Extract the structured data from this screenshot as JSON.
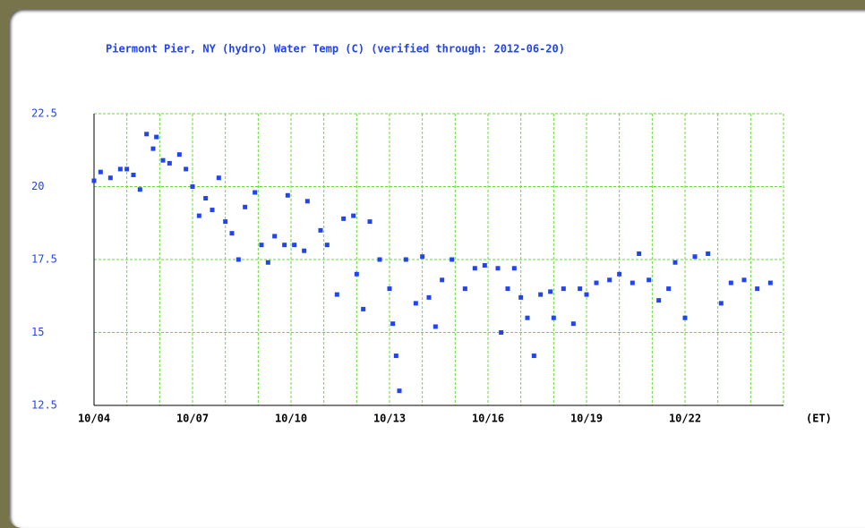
{
  "chart_data": {
    "type": "scatter",
    "title": "Piermont Pier, NY (hydro) Water Temp (C) (verified through: 2012-06-20)",
    "x_unit_label": "(ET)",
    "color": "#2244ee",
    "grid_color": "#66dd33",
    "grid": true,
    "xlim": [
      0,
      21
    ],
    "xticks": [
      {
        "value": 0,
        "label": "10/04"
      },
      {
        "value": 3,
        "label": "10/07"
      },
      {
        "value": 6,
        "label": "10/10"
      },
      {
        "value": 9,
        "label": "10/13"
      },
      {
        "value": 12,
        "label": "10/16"
      },
      {
        "value": 15,
        "label": "10/19"
      },
      {
        "value": 18,
        "label": "10/22"
      }
    ],
    "xminor": [
      1,
      2,
      4,
      5,
      7,
      8,
      10,
      11,
      13,
      14,
      16,
      17,
      19,
      20,
      21
    ],
    "ylim": [
      12.5,
      22.5
    ],
    "yticks": [
      12.5,
      15,
      17.5,
      20,
      22.5
    ],
    "x": [
      0,
      0.2,
      0.5,
      0.8,
      1.0,
      1.2,
      1.4,
      1.6,
      1.8,
      1.9,
      2.1,
      2.3,
      2.6,
      2.8,
      3.0,
      3.2,
      3.4,
      3.6,
      3.8,
      4.0,
      4.2,
      4.4,
      4.6,
      4.9,
      5.1,
      5.3,
      5.5,
      5.8,
      5.9,
      6.1,
      6.4,
      6.5,
      6.9,
      7.1,
      7.4,
      7.6,
      7.9,
      8.0,
      8.2,
      8.4,
      8.7,
      9.0,
      9.1,
      9.2,
      9.3,
      9.5,
      9.8,
      10.0,
      10.2,
      10.4,
      10.6,
      10.9,
      11.3,
      11.6,
      11.9,
      12.3,
      12.4,
      12.6,
      12.8,
      13.0,
      13.2,
      13.4,
      13.6,
      13.9,
      14.0,
      14.3,
      14.6,
      14.8,
      15.0,
      15.3,
      15.7,
      16.0,
      16.4,
      16.6,
      16.9,
      17.2,
      17.5,
      17.7,
      18.0,
      18.3,
      18.7,
      19.1,
      19.4,
      19.8,
      20.2,
      20.6
    ],
    "values": [
      20.2,
      20.5,
      20.3,
      20.6,
      20.6,
      20.4,
      19.9,
      21.8,
      21.3,
      21.7,
      20.9,
      20.8,
      21.1,
      20.6,
      20.0,
      19.0,
      19.6,
      19.2,
      20.3,
      18.8,
      18.4,
      17.5,
      19.3,
      19.8,
      18.0,
      17.4,
      18.3,
      18.0,
      19.7,
      18.0,
      17.8,
      19.5,
      18.5,
      18.0,
      16.3,
      18.9,
      19.0,
      17.0,
      15.8,
      18.8,
      17.5,
      16.5,
      15.3,
      14.2,
      13.0,
      17.5,
      16.0,
      17.6,
      16.2,
      15.2,
      16.8,
      17.5,
      16.5,
      17.2,
      17.3,
      17.2,
      15.0,
      16.5,
      17.2,
      16.2,
      15.5,
      14.2,
      16.3,
      16.4,
      15.5,
      16.5,
      15.3,
      16.5,
      16.3,
      16.7,
      16.8,
      17.0,
      16.7,
      17.7,
      16.8,
      16.1,
      16.5,
      17.4,
      15.5,
      17.6,
      17.7,
      16.0,
      16.7,
      16.8,
      16.5,
      16.7
    ]
  }
}
